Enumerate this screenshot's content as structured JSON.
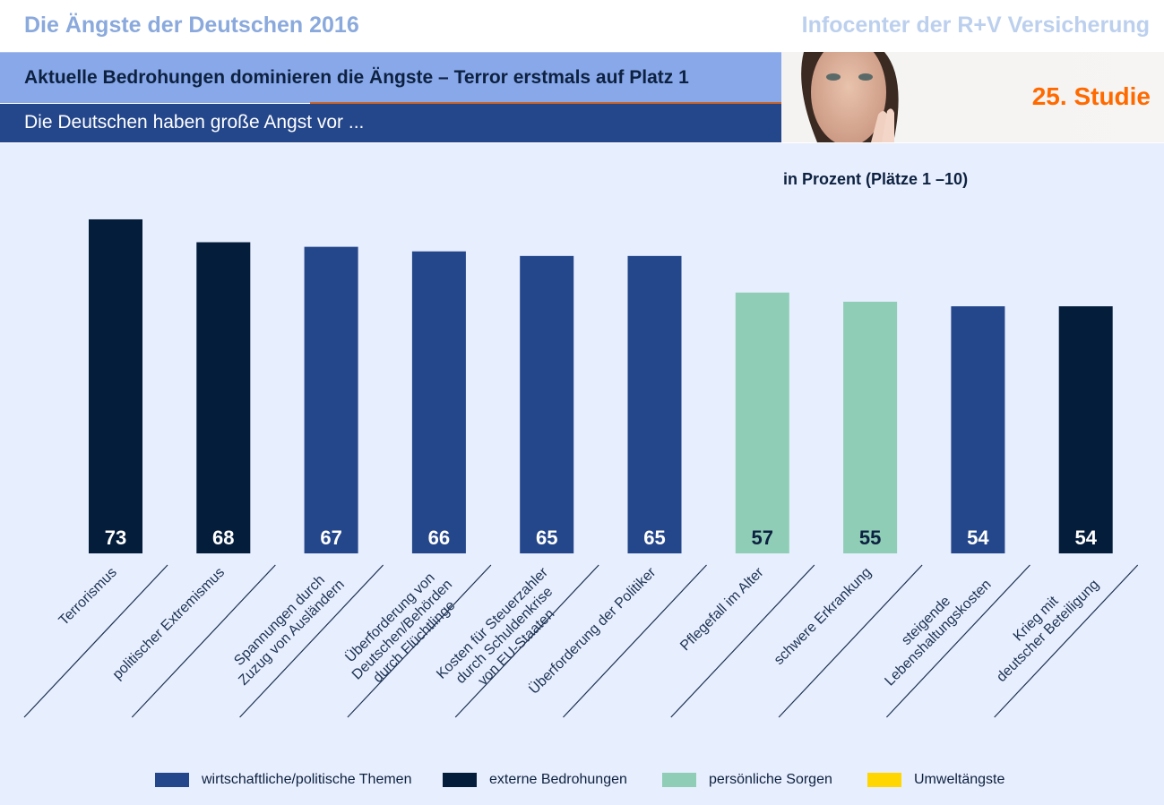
{
  "header": {
    "title": "Die Ängste der Deutschen 2016",
    "publisher": "Infocenter der R+V Versicherung",
    "headline": "Aktuelle Bedrohungen dominieren die Ängste – Terror erstmals auf Platz 1",
    "subheadline": "Die Deutschen haben große Angst vor ...",
    "study": "25. Studie"
  },
  "colors": {
    "wirtschaftlich": "#24468a",
    "extern": "#041d3b",
    "persoenlich": "#8fcdb6",
    "umwelt": "#ffd600"
  },
  "chart_data": {
    "type": "bar",
    "title": "Die Deutschen haben große Angst vor ...",
    "subtitle": "in Prozent (Plätze 1 –10)",
    "xlabel": "",
    "ylabel": "Prozent",
    "ylim": [
      0,
      100
    ],
    "grid": false,
    "legend_position": "bottom",
    "categories": [
      [
        "Terrorismus"
      ],
      [
        "politischer Extremismus"
      ],
      [
        "Spannungen durch",
        "Zuzug von Ausländern"
      ],
      [
        "Überforderung von",
        "Deutschen/Behörden",
        "durch Flüchtlinge"
      ],
      [
        "Kosten für Steuerzahler",
        "durch Schuldenkrise",
        "von EU-Staaten"
      ],
      [
        "Überforderung der Politiker"
      ],
      [
        "Pflegefall im Alter"
      ],
      [
        "schwere Erkrankung"
      ],
      [
        "steigende",
        "Lebenshaltungskosten"
      ],
      [
        "Krieg mit",
        "deutscher Beteiligung"
      ]
    ],
    "values": [
      73,
      68,
      67,
      66,
      65,
      65,
      57,
      55,
      54,
      54
    ],
    "groups": [
      "extern",
      "extern",
      "wirtschaftlich",
      "wirtschaftlich",
      "wirtschaftlich",
      "wirtschaftlich",
      "persoenlich",
      "persoenlich",
      "wirtschaftlich",
      "extern"
    ],
    "legend": [
      {
        "key": "wirtschaftlich",
        "label": "wirtschaftliche/politische Themen"
      },
      {
        "key": "extern",
        "label": "externe Bedrohungen"
      },
      {
        "key": "persoenlich",
        "label": "persönliche Sorgen"
      },
      {
        "key": "umwelt",
        "label": "Umweltängste"
      }
    ]
  }
}
